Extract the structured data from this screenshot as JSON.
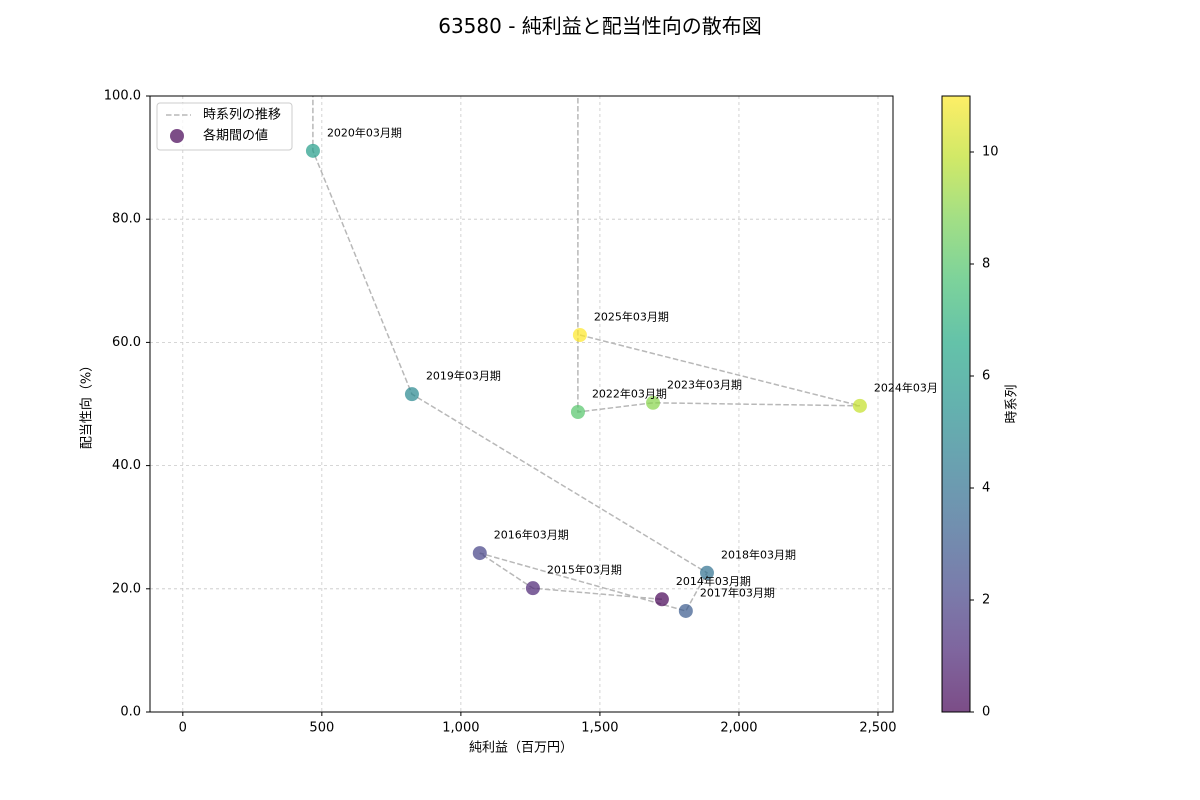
{
  "chart_data": {
    "type": "scatter",
    "title": "63580 - 純利益と配当性向の散布図",
    "xlabel": "純利益（百万円）",
    "ylabel": "配当性向（%）",
    "xlim": [
      -118,
      2554
    ],
    "ylim": [
      0,
      100
    ],
    "xticks": [
      0,
      500,
      1000,
      1500,
      2000,
      2500
    ],
    "xtick_labels": [
      "0",
      "500",
      "1,000",
      "1,500",
      "2,000",
      "2,500"
    ],
    "yticks": [
      0,
      20,
      40,
      60,
      80,
      100
    ],
    "ytick_labels": [
      "0.0",
      "20.0",
      "40.0",
      "60.0",
      "80.0",
      "100.0"
    ],
    "grid": true,
    "legend": {
      "placement": "top-left",
      "line_label": "時系列の推移",
      "marker_label": "各期間の値"
    },
    "points": [
      {
        "t": 0,
        "label": "2014年03月期",
        "x": 1723,
        "y": 18.3
      },
      {
        "t": 1,
        "label": "2015年03月期",
        "x": 1259,
        "y": 20.1
      },
      {
        "t": 2,
        "label": "2016年03月期",
        "x": 1068,
        "y": 25.8
      },
      {
        "t": 3,
        "label": "2017年03月期",
        "x": 1809,
        "y": 16.4
      },
      {
        "t": 4,
        "label": "2018年03月期",
        "x": 1885,
        "y": 22.6
      },
      {
        "t": 5,
        "label": "2019年03月期",
        "x": 824,
        "y": 51.6
      },
      {
        "t": 6,
        "label": "2020年03月期",
        "x": 468,
        "y": 91.1
      },
      {
        "t": 7,
        "x": null,
        "y": null,
        "above_range": true
      },
      {
        "t": 8,
        "label": "2022年03月期",
        "x": 1421,
        "y": 48.7
      },
      {
        "t": 9,
        "label": "2023年03月期",
        "x": 1691,
        "y": 50.2
      },
      {
        "t": 10,
        "label": "2024年03月",
        "x": 2435,
        "y": 49.7
      },
      {
        "t": 11,
        "label": "2025年03月期",
        "x": 1428,
        "y": 61.2
      }
    ],
    "colorbar": {
      "label": "時系列",
      "range": [
        0,
        11
      ],
      "ticks": [
        0,
        2,
        4,
        6,
        8,
        10
      ],
      "tick_labels": [
        "0",
        "2",
        "4",
        "6",
        "8",
        "10"
      ],
      "alpha": 0.7
    },
    "colors": {
      "trend_line": "#b8b8b8",
      "grid": "#c8c8c8",
      "frame": "#000000",
      "legend_border": "#cccccc",
      "colormap_stops": [
        "#440154",
        "#482475",
        "#414487",
        "#355f8d",
        "#2a788e",
        "#21918c",
        "#22a884",
        "#44bf70",
        "#7ad151",
        "#bddf26",
        "#fde725"
      ]
    }
  }
}
